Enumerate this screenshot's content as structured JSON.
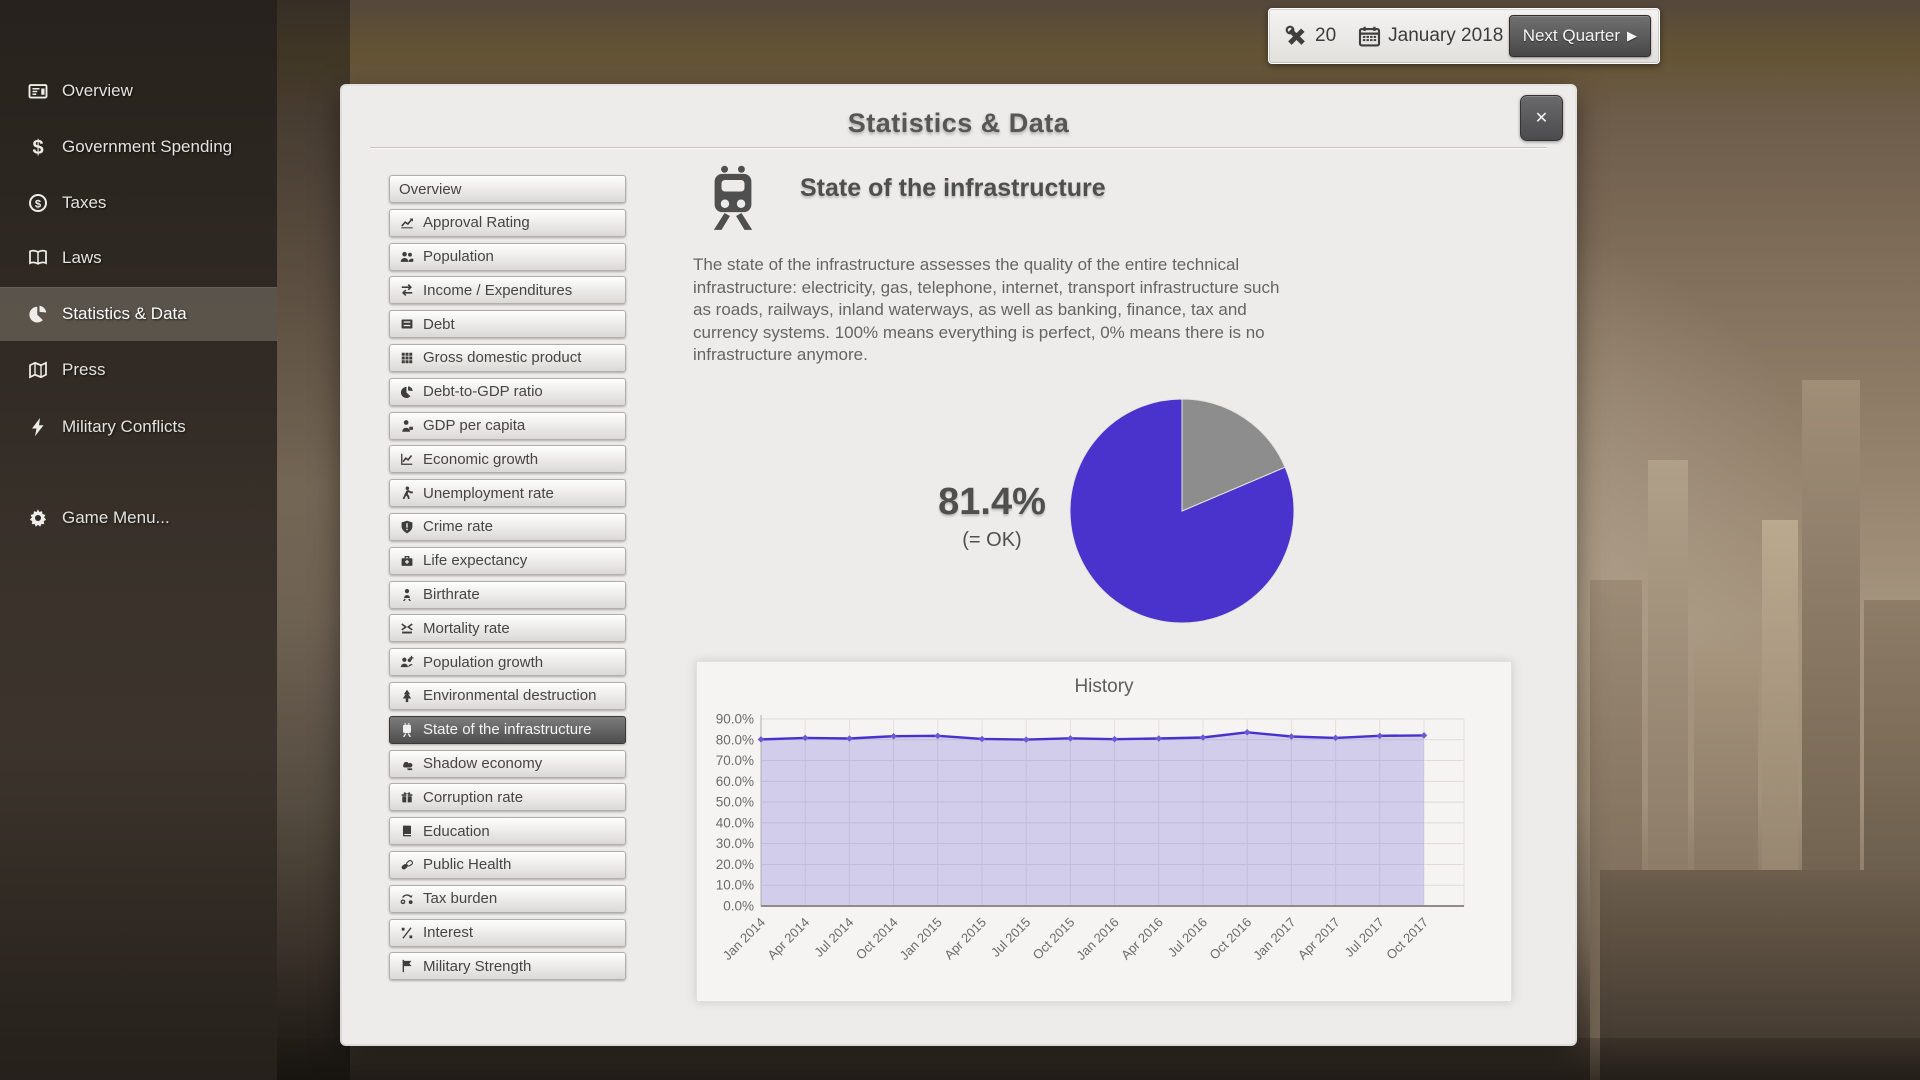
{
  "accent_color": "#4a32cc",
  "toolbar": {
    "tools_count": "20",
    "date": "January 2018",
    "next_quarter_label": "Next Quarter",
    "next_quarter_arrow": "▶"
  },
  "sidebar": {
    "items": [
      {
        "label": "Overview",
        "icon": "newspaper",
        "active": false
      },
      {
        "label": "Government Spending",
        "icon": "dollar",
        "active": false
      },
      {
        "label": "Taxes",
        "icon": "coin",
        "active": false
      },
      {
        "label": "Laws",
        "icon": "book-open",
        "active": false
      },
      {
        "label": "Statistics & Data",
        "icon": "pie",
        "active": true
      },
      {
        "label": "Press",
        "icon": "map",
        "active": false
      },
      {
        "label": "Military Conflicts",
        "icon": "bolt",
        "active": false
      }
    ],
    "game_menu": {
      "label": "Game Menu...",
      "icon": "gear"
    }
  },
  "modal": {
    "title": "Statistics & Data",
    "close_label": "✕",
    "stat_buttons": [
      {
        "label": "Overview",
        "icon": "",
        "active": false
      },
      {
        "label": "Approval Rating",
        "icon": "chart-up",
        "active": false
      },
      {
        "label": "Population",
        "icon": "people",
        "active": false
      },
      {
        "label": "Income / Expenditures",
        "icon": "swap",
        "active": false
      },
      {
        "label": "Debt",
        "icon": "drawer",
        "active": false
      },
      {
        "label": "Gross domestic product",
        "icon": "grid",
        "active": false
      },
      {
        "label": "Debt-to-GDP ratio",
        "icon": "pie",
        "active": false
      },
      {
        "label": "GDP per capita",
        "icon": "person-box",
        "active": false
      },
      {
        "label": "Economic growth",
        "icon": "line-chart",
        "active": false
      },
      {
        "label": "Unemployment rate",
        "icon": "walker",
        "active": false
      },
      {
        "label": "Crime rate",
        "icon": "shield",
        "active": false
      },
      {
        "label": "Life expectancy",
        "icon": "briefcase",
        "active": false
      },
      {
        "label": "Birthrate",
        "icon": "child",
        "active": false
      },
      {
        "label": "Mortality rate",
        "icon": "mortality",
        "active": false
      },
      {
        "label": "Population growth",
        "icon": "people-plus",
        "active": false
      },
      {
        "label": "Environmental destruction",
        "icon": "tree",
        "active": false
      },
      {
        "label": "State of the infrastructure",
        "icon": "train",
        "active": true
      },
      {
        "label": "Shadow economy",
        "icon": "cloud-factory",
        "active": false
      },
      {
        "label": "Corruption rate",
        "icon": "gift",
        "active": false
      },
      {
        "label": "Education",
        "icon": "book",
        "active": false
      },
      {
        "label": "Public Health",
        "icon": "pill",
        "active": false
      },
      {
        "label": "Tax burden",
        "icon": "percent-arrow",
        "active": false
      },
      {
        "label": "Interest",
        "icon": "percent-blocks",
        "active": false
      },
      {
        "label": "Military Strength",
        "icon": "flag",
        "active": false
      }
    ],
    "content": {
      "heading": "State of the infrastructure",
      "description": "The state of the infrastructure assesses the quality of the entire technical infrastructure: electricity, gas, telephone, internet, transport infrastructure such as roads, railways, inland waterways, as well as banking, finance, tax and currency systems. 100% means everything is perfect, 0% means there is no infrastructure anymore.",
      "value": "81.4%",
      "value_note": "(= OK)"
    }
  },
  "chart_data": [
    {
      "type": "pie",
      "values": [
        81.4,
        18.6
      ],
      "colors": [
        "#4a32cc",
        "#8d8d8d"
      ],
      "center_label": "81.4%",
      "center_sublabel": "(= OK)"
    },
    {
      "type": "area",
      "title": "History",
      "categories": [
        "Jan 2014",
        "Apr 2014",
        "Jul 2014",
        "Oct 2014",
        "Jan 2015",
        "Apr 2015",
        "Jul 2015",
        "Oct 2015",
        "Jan 2016",
        "Apr 2016",
        "Jul 2016",
        "Oct 2016",
        "Jan 2017",
        "Apr 2017",
        "Jul 2017",
        "Oct 2017"
      ],
      "values": [
        80.2,
        80.9,
        80.6,
        81.7,
        81.9,
        80.4,
        80.1,
        80.7,
        80.3,
        80.6,
        81.1,
        83.6,
        81.6,
        80.9,
        81.9,
        82.1
      ],
      "ylim": [
        0,
        90
      ],
      "ytick_step": 10,
      "grid": true,
      "legend": "none",
      "line_color": "#4632cc",
      "fill_color": "rgba(130,115,215,0.30)"
    }
  ]
}
